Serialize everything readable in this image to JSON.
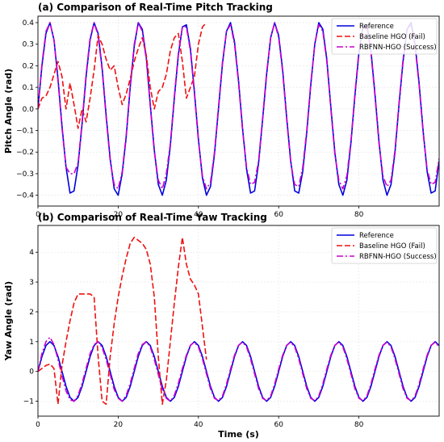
{
  "chart_data": [
    {
      "type": "line",
      "title": "(a) Comparison of Real-Time Pitch Tracking",
      "xlabel": "",
      "ylabel": "Pitch Angle (rad)",
      "xlim": [
        0,
        100
      ],
      "ylim": [
        -0.45,
        0.43
      ],
      "yticks": [
        -0.4,
        -0.3,
        -0.2,
        -0.1,
        0.0,
        0.1,
        0.2,
        0.3,
        0.4
      ],
      "ytick_labels": [
        "−0.4",
        "−0.3",
        "−0.2",
        "−0.1",
        "0.0",
        "0.1",
        "0.2",
        "0.3",
        "0.4"
      ],
      "xticks": [
        0,
        20,
        40,
        60,
        80
      ],
      "grid": true,
      "legend_position": "top-right",
      "series": [
        {
          "name": "Reference",
          "color": "#0000dd",
          "style": "solid",
          "x": [
            0,
            1,
            2,
            3,
            4,
            5,
            6,
            7,
            8,
            9,
            10,
            11,
            12,
            13,
            14,
            15,
            16,
            17,
            18,
            19,
            20,
            21,
            22,
            23,
            24,
            25,
            26,
            27,
            28,
            29,
            30,
            31,
            32,
            33,
            34,
            35,
            36,
            37,
            38,
            39,
            40,
            41,
            42,
            43,
            44,
            45,
            46,
            47,
            48,
            49,
            50,
            51,
            52,
            53,
            54,
            55,
            56,
            57,
            58,
            59,
            60,
            61,
            62,
            63,
            64,
            65,
            66,
            67,
            68,
            69,
            70,
            71,
            72,
            73,
            74,
            75,
            76,
            77,
            78,
            79,
            80,
            81,
            82,
            83,
            84,
            85,
            86,
            87,
            88,
            89,
            90,
            91,
            92,
            93,
            94,
            95,
            96,
            97,
            98,
            99,
            100
          ],
          "y": [
            0.0,
            0.2,
            0.35,
            0.4,
            0.32,
            0.14,
            -0.08,
            -0.27,
            -0.39,
            -0.38,
            -0.26,
            -0.07,
            0.15,
            0.32,
            0.4,
            0.35,
            0.19,
            -0.03,
            -0.23,
            -0.37,
            -0.4,
            -0.3,
            -0.13,
            0.1,
            0.29,
            0.4,
            0.37,
            0.24,
            0.02,
            -0.19,
            -0.35,
            -0.4,
            -0.33,
            -0.17,
            0.05,
            0.25,
            0.38,
            0.39,
            0.28,
            0.08,
            -0.14,
            -0.32,
            -0.4,
            -0.36,
            -0.21,
            0.0,
            0.21,
            0.36,
            0.4,
            0.31,
            0.13,
            -0.09,
            -0.28,
            -0.39,
            -0.38,
            -0.25,
            -0.05,
            0.16,
            0.33,
            0.4,
            0.34,
            0.18,
            -0.04,
            -0.24,
            -0.38,
            -0.39,
            -0.29,
            -0.11,
            0.11,
            0.3,
            0.4,
            0.37,
            0.23,
            0.01,
            -0.2,
            -0.35,
            -0.4,
            -0.33,
            -0.16,
            0.06,
            0.26,
            0.38,
            0.39,
            0.27,
            0.07,
            -0.15,
            -0.33,
            -0.4,
            -0.35,
            -0.2,
            0.02,
            0.22,
            0.37,
            0.4,
            0.3,
            0.12,
            -0.1,
            -0.29,
            -0.39,
            -0.38,
            -0.24
          ]
        },
        {
          "name": "Baseline HGO (Fail)",
          "color": "#ee1111",
          "style": "dashed",
          "x": [
            0,
            1,
            2,
            3,
            4,
            5,
            6,
            7,
            8,
            9,
            10,
            11,
            12,
            13,
            14,
            15,
            16,
            17,
            18,
            19,
            20,
            21,
            22,
            23,
            24,
            25,
            26,
            27,
            28,
            29,
            30,
            31,
            32,
            33,
            34,
            35,
            36,
            37,
            38,
            39,
            40,
            41,
            42
          ],
          "y": [
            0.0,
            0.05,
            0.06,
            0.1,
            0.16,
            0.22,
            0.15,
            0.0,
            0.12,
            0.02,
            -0.09,
            0.0,
            -0.06,
            0.05,
            0.18,
            0.34,
            0.3,
            0.23,
            0.18,
            0.2,
            0.1,
            0.02,
            0.07,
            0.14,
            0.22,
            0.28,
            0.33,
            0.25,
            0.1,
            0.0,
            0.08,
            0.1,
            0.16,
            0.27,
            0.33,
            0.35,
            0.22,
            0.05,
            0.1,
            0.15,
            0.3,
            0.38,
            0.4
          ]
        },
        {
          "name": "RBFNN-HGO (Success)",
          "color": "#cc00cc",
          "style": "dashdot",
          "x": [
            0,
            1,
            2,
            3,
            4,
            5,
            6,
            7,
            8,
            9,
            10,
            11,
            12,
            13,
            14,
            15,
            16,
            17,
            18,
            19,
            20,
            21,
            22,
            23,
            24,
            25,
            26,
            27,
            28,
            29,
            30,
            31,
            32,
            33,
            34,
            35,
            36,
            37,
            38,
            39,
            40,
            41,
            42,
            43,
            44,
            45,
            46,
            47,
            48,
            49,
            50,
            51,
            52,
            53,
            54,
            55,
            56,
            57,
            58,
            59,
            60,
            61,
            62,
            63,
            64,
            65,
            66,
            67,
            68,
            69,
            70,
            71,
            72,
            73,
            74,
            75,
            76,
            77,
            78,
            79,
            80,
            81,
            82,
            83,
            84,
            85,
            86,
            87,
            88,
            89,
            90,
            91,
            92,
            93,
            94,
            95,
            96,
            97,
            98,
            99,
            100
          ],
          "y": [
            0.0,
            0.21,
            0.36,
            0.4,
            0.32,
            0.13,
            -0.09,
            -0.27,
            -0.3,
            -0.3,
            -0.25,
            -0.06,
            0.16,
            0.33,
            0.4,
            0.34,
            0.18,
            -0.04,
            -0.24,
            -0.35,
            -0.37,
            -0.29,
            -0.12,
            0.11,
            0.3,
            0.4,
            0.36,
            0.23,
            0.01,
            -0.2,
            -0.33,
            -0.37,
            -0.3,
            -0.16,
            0.06,
            0.26,
            0.38,
            0.38,
            0.27,
            0.07,
            -0.15,
            -0.31,
            -0.37,
            -0.34,
            -0.2,
            0.01,
            0.22,
            0.36,
            0.39,
            0.3,
            0.12,
            -0.1,
            -0.27,
            -0.35,
            -0.34,
            -0.24,
            -0.04,
            0.17,
            0.33,
            0.4,
            0.33,
            0.17,
            -0.05,
            -0.25,
            -0.35,
            -0.36,
            -0.27,
            -0.1,
            0.12,
            0.3,
            0.39,
            0.36,
            0.22,
            0.0,
            -0.21,
            -0.33,
            -0.37,
            -0.31,
            -0.15,
            0.07,
            0.27,
            0.38,
            0.38,
            0.26,
            0.06,
            -0.16,
            -0.31,
            -0.36,
            -0.33,
            -0.19,
            0.03,
            0.23,
            0.37,
            0.39,
            0.29,
            0.11,
            -0.11,
            -0.28,
            -0.35,
            -0.34,
            -0.23
          ]
        }
      ]
    },
    {
      "type": "line",
      "title": "(b) Comparison of Real-Time Yaw Tracking",
      "xlabel": "Time (s)",
      "ylabel": "Yaw Angle (rad)",
      "xlim": [
        0,
        100
      ],
      "ylim": [
        -1.5,
        4.9
      ],
      "yticks": [
        -1,
        0,
        1,
        2,
        3,
        4
      ],
      "ytick_labels": [
        "−1",
        "0",
        "1",
        "2",
        "3",
        "4"
      ],
      "xticks": [
        0,
        20,
        40,
        60,
        80
      ],
      "grid": true,
      "legend_position": "top-right",
      "series": [
        {
          "name": "Reference",
          "color": "#0000dd",
          "style": "solid",
          "x": [
            0,
            1,
            2,
            3,
            4,
            5,
            6,
            7,
            8,
            9,
            10,
            11,
            12,
            13,
            14,
            15,
            16,
            17,
            18,
            19,
            20,
            21,
            22,
            23,
            24,
            25,
            26,
            27,
            28,
            29,
            30,
            31,
            32,
            33,
            34,
            35,
            36,
            37,
            38,
            39,
            40,
            41,
            42,
            43,
            44,
            45,
            46,
            47,
            48,
            49,
            50,
            51,
            52,
            53,
            54,
            55,
            56,
            57,
            58,
            59,
            60,
            61,
            62,
            63,
            64,
            65,
            66,
            67,
            68,
            69,
            70,
            71,
            72,
            73,
            74,
            75,
            76,
            77,
            78,
            79,
            80,
            81,
            82,
            83,
            84,
            85,
            86,
            87,
            88,
            89,
            90,
            91,
            92,
            93,
            94,
            95,
            96,
            97,
            98,
            99,
            100
          ],
          "y": [
            0.0,
            0.5,
            0.87,
            1.0,
            0.87,
            0.5,
            0.0,
            -0.5,
            -0.87,
            -1.0,
            -0.87,
            -0.5,
            0.0,
            0.5,
            0.87,
            1.0,
            0.87,
            0.5,
            0.0,
            -0.5,
            -0.87,
            -1.0,
            -0.87,
            -0.5,
            0.0,
            0.5,
            0.87,
            1.0,
            0.87,
            0.5,
            0.0,
            -0.5,
            -0.87,
            -1.0,
            -0.87,
            -0.5,
            0.0,
            0.5,
            0.87,
            1.0,
            0.87,
            0.5,
            0.0,
            -0.5,
            -0.87,
            -1.0,
            -0.87,
            -0.5,
            0.0,
            0.5,
            0.87,
            1.0,
            0.87,
            0.5,
            0.0,
            -0.5,
            -0.87,
            -1.0,
            -0.87,
            -0.5,
            0.0,
            0.5,
            0.87,
            1.0,
            0.87,
            0.5,
            0.0,
            -0.5,
            -0.87,
            -1.0,
            -0.87,
            -0.5,
            0.0,
            0.5,
            0.87,
            1.0,
            0.87,
            0.5,
            0.0,
            -0.5,
            -0.87,
            -1.0,
            -0.87,
            -0.5,
            0.0,
            0.5,
            0.87,
            1.0,
            0.87,
            0.5,
            0.0,
            -0.5,
            -0.87,
            -1.0,
            -0.87,
            -0.5,
            0.0,
            0.5,
            0.87,
            1.0,
            0.87
          ]
        },
        {
          "name": "Baseline HGO (Fail)",
          "color": "#ee1111",
          "style": "dashed",
          "x": [
            0,
            1,
            2,
            3,
            4,
            5,
            6,
            7,
            8,
            9,
            10,
            11,
            12,
            13,
            14,
            15,
            16,
            17,
            18,
            19,
            20,
            21,
            22,
            23,
            24,
            25,
            26,
            27,
            28,
            29,
            30,
            31,
            32,
            33,
            34,
            35,
            36,
            37,
            38,
            39,
            40,
            41,
            42
          ],
          "y": [
            0.0,
            0.1,
            0.2,
            0.25,
            0.1,
            -1.1,
            0.2,
            1.0,
            1.7,
            2.3,
            2.6,
            2.6,
            2.6,
            2.6,
            2.5,
            0.5,
            -1.0,
            -1.1,
            0.5,
            1.6,
            2.5,
            3.2,
            3.8,
            4.3,
            4.5,
            4.4,
            4.3,
            4.1,
            3.6,
            2.5,
            0.5,
            -1.1,
            -0.3,
            1.0,
            2.3,
            3.5,
            4.5,
            3.6,
            3.1,
            2.9,
            2.6,
            1.5,
            0.4
          ]
        },
        {
          "name": "RBFNN-HGO (Success)",
          "color": "#cc00cc",
          "style": "dashdot",
          "x": [
            0,
            1,
            2,
            3,
            4,
            5,
            6,
            7,
            8,
            9,
            10,
            11,
            12,
            13,
            14,
            15,
            16,
            17,
            18,
            19,
            20,
            21,
            22,
            23,
            24,
            25,
            26,
            27,
            28,
            29,
            30,
            31,
            32,
            33,
            34,
            35,
            36,
            37,
            38,
            39,
            40,
            41,
            42,
            43,
            44,
            45,
            46,
            47,
            48,
            49,
            50,
            51,
            52,
            53,
            54,
            55,
            56,
            57,
            58,
            59,
            60,
            61,
            62,
            63,
            64,
            65,
            66,
            67,
            68,
            69,
            70,
            71,
            72,
            73,
            74,
            75,
            76,
            77,
            78,
            79,
            80,
            81,
            82,
            83,
            84,
            85,
            86,
            87,
            88,
            89,
            90,
            91,
            92,
            93,
            94,
            95,
            96,
            97,
            98,
            99,
            100
          ],
          "y": [
            0.0,
            0.6,
            1.0,
            1.15,
            0.9,
            0.4,
            -0.15,
            -0.65,
            -0.95,
            -1.0,
            -0.8,
            -0.4,
            0.1,
            0.6,
            0.9,
            1.0,
            0.8,
            0.4,
            -0.1,
            -0.6,
            -0.9,
            -1.0,
            -0.8,
            -0.4,
            0.1,
            0.6,
            0.9,
            1.0,
            0.82,
            0.4,
            -0.1,
            -0.6,
            -0.9,
            -1.0,
            -0.8,
            -0.4,
            0.1,
            0.55,
            0.88,
            0.98,
            0.82,
            0.42,
            -0.08,
            -0.58,
            -0.9,
            -0.98,
            -0.82,
            -0.42,
            0.08,
            0.55,
            0.88,
            0.98,
            0.82,
            0.42,
            -0.08,
            -0.58,
            -0.9,
            -0.98,
            -0.82,
            -0.42,
            0.08,
            0.55,
            0.88,
            0.98,
            0.82,
            0.42,
            -0.08,
            -0.58,
            -0.9,
            -0.98,
            -0.82,
            -0.42,
            0.08,
            0.55,
            0.88,
            0.98,
            0.82,
            0.42,
            -0.08,
            -0.58,
            -0.9,
            -0.98,
            -0.82,
            -0.42,
            0.08,
            0.55,
            0.88,
            0.98,
            0.82,
            0.42,
            -0.08,
            -0.58,
            -0.9,
            -0.98,
            -0.82,
            -0.42,
            0.08,
            0.55,
            0.88,
            0.98,
            0.82
          ]
        }
      ]
    }
  ]
}
